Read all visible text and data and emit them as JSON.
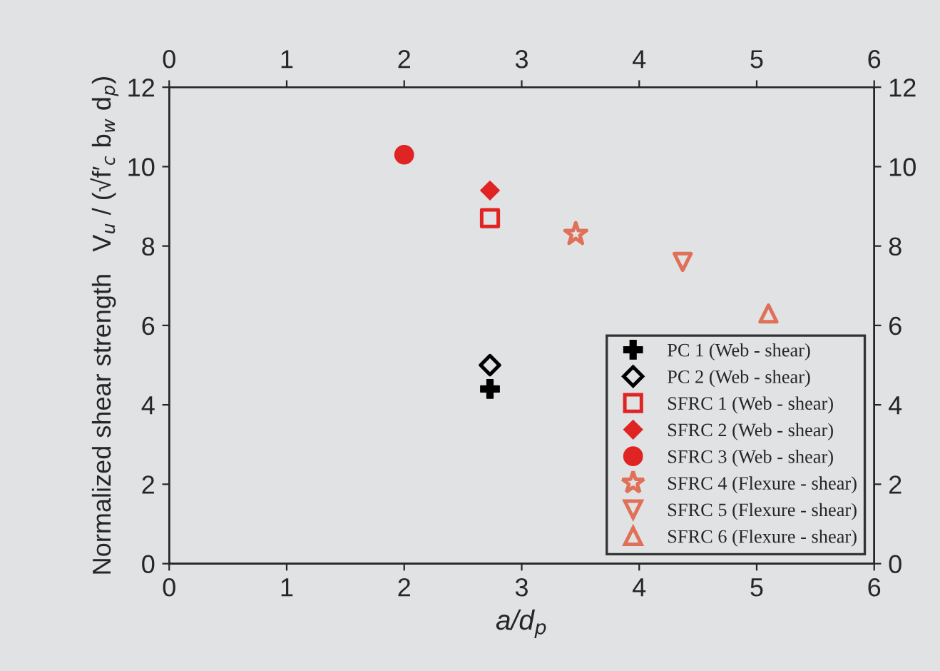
{
  "chart_data": {
    "type": "scatter",
    "xlabel": "a/d$_{p}$",
    "ylabel": "Normalized shear strength   V$_{u}$ / (√f′$_{c}$ b$_{w}$ d$_{p}$)",
    "xlim": [
      0,
      6
    ],
    "xticks": [
      0,
      1,
      2,
      3,
      4,
      5,
      6
    ],
    "x2lim": [
      0,
      6
    ],
    "x2ticks": [
      0,
      1,
      2,
      3,
      4,
      5,
      6
    ],
    "ylim": [
      0,
      12
    ],
    "yticks": [
      0,
      2,
      4,
      6,
      8,
      10,
      12
    ],
    "y2lim": [
      0,
      12
    ],
    "y2ticks": [
      0,
      2,
      4,
      6,
      8,
      10,
      12
    ],
    "grid": false,
    "legend": "bottom right",
    "series": [
      {
        "name": "PC 1 (Web - shear)",
        "color": "#000000",
        "marker": "cross",
        "x": [
          2.73
        ],
        "values": [
          4.4
        ]
      },
      {
        "name": "PC 2 (Web - shear)",
        "color": "#000000",
        "marker": "diamond",
        "x": [
          2.73
        ],
        "values": [
          5.0
        ]
      },
      {
        "name": "SFRC 1 (Web - shear)",
        "color": "#e02424",
        "marker": "square",
        "x": [
          2.73
        ],
        "values": [
          8.7
        ]
      },
      {
        "name": "SFRC 2 (Web - shear)",
        "color": "#e02424",
        "marker": "diamond",
        "x": [
          2.73
        ],
        "values": [
          9.4
        ]
      },
      {
        "name": "SFRC 3 (Web - shear)",
        "color": "#e02424",
        "marker": "circle",
        "x": [
          2.0
        ],
        "values": [
          10.3
        ]
      },
      {
        "name": "SFRC 4 (Flexure - shear)",
        "color": "#e07058",
        "marker": "star",
        "x": [
          3.46
        ],
        "values": [
          8.3
        ]
      },
      {
        "name": "SFRC 5 (Flexure - shear)",
        "color": "#e07058",
        "marker": "triangle_down",
        "x": [
          4.37
        ],
        "values": [
          7.6
        ]
      },
      {
        "name": "SFRC 6 (Flexure - shear)",
        "color": "#e07058",
        "marker": "triangle",
        "x": [
          5.1
        ],
        "values": [
          6.3
        ]
      }
    ]
  }
}
